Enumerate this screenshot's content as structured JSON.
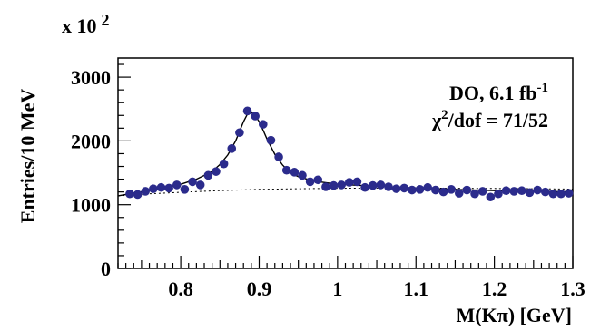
{
  "chart_data": {
    "type": "scatter",
    "exponent_label": "x 10",
    "exponent_power": "2",
    "ylabel": "Entries/10 MeV",
    "xlabel": "M(Kπ) [GeV]",
    "annotation_line1": "DO, 6.1 fb",
    "annotation_line1_sup": "-1",
    "annotation_line2_chi": "χ",
    "annotation_line2_sup": "2",
    "annotation_line2_rest": "/dof = 71/52",
    "xlim": [
      0.72,
      1.3
    ],
    "ylim": [
      0,
      3300
    ],
    "x_ticks": [
      0.8,
      0.9,
      1.0,
      1.1,
      1.2,
      1.3
    ],
    "x_tick_labels": [
      "0.8",
      "0.9",
      "1",
      "1.1",
      "1.2",
      "1.3"
    ],
    "y_ticks": [
      0,
      1000,
      2000,
      3000
    ],
    "y_tick_labels": [
      "0",
      "1000",
      "2000",
      "3000"
    ],
    "marker_color": "#2b2b8c",
    "points": [
      [
        0.735,
        1170
      ],
      [
        0.745,
        1160
      ],
      [
        0.755,
        1210
      ],
      [
        0.765,
        1250
      ],
      [
        0.775,
        1270
      ],
      [
        0.785,
        1260
      ],
      [
        0.795,
        1310
      ],
      [
        0.805,
        1240
      ],
      [
        0.815,
        1360
      ],
      [
        0.825,
        1310
      ],
      [
        0.835,
        1460
      ],
      [
        0.845,
        1520
      ],
      [
        0.855,
        1640
      ],
      [
        0.865,
        1880
      ],
      [
        0.875,
        2130
      ],
      [
        0.885,
        2470
      ],
      [
        0.895,
        2390
      ],
      [
        0.905,
        2260
      ],
      [
        0.915,
        2010
      ],
      [
        0.925,
        1750
      ],
      [
        0.935,
        1540
      ],
      [
        0.945,
        1510
      ],
      [
        0.955,
        1460
      ],
      [
        0.965,
        1360
      ],
      [
        0.975,
        1390
      ],
      [
        0.985,
        1280
      ],
      [
        0.995,
        1300
      ],
      [
        1.005,
        1310
      ],
      [
        1.015,
        1350
      ],
      [
        1.025,
        1360
      ],
      [
        1.035,
        1270
      ],
      [
        1.045,
        1300
      ],
      [
        1.055,
        1310
      ],
      [
        1.065,
        1280
      ],
      [
        1.075,
        1250
      ],
      [
        1.085,
        1260
      ],
      [
        1.095,
        1230
      ],
      [
        1.105,
        1240
      ],
      [
        1.115,
        1270
      ],
      [
        1.125,
        1230
      ],
      [
        1.135,
        1200
      ],
      [
        1.145,
        1240
      ],
      [
        1.155,
        1180
      ],
      [
        1.165,
        1230
      ],
      [
        1.175,
        1170
      ],
      [
        1.185,
        1210
      ],
      [
        1.195,
        1120
      ],
      [
        1.205,
        1170
      ],
      [
        1.215,
        1220
      ],
      [
        1.225,
        1210
      ],
      [
        1.235,
        1220
      ],
      [
        1.245,
        1190
      ],
      [
        1.255,
        1230
      ],
      [
        1.265,
        1200
      ],
      [
        1.275,
        1170
      ],
      [
        1.285,
        1170
      ],
      [
        1.295,
        1180
      ]
    ],
    "series": [
      {
        "kind": "fit",
        "style": "solid",
        "x": [
          0.72,
          0.74,
          0.76,
          0.78,
          0.8,
          0.82,
          0.84,
          0.85,
          0.86,
          0.87,
          0.875,
          0.88,
          0.885,
          0.89,
          0.895,
          0.9,
          0.905,
          0.91,
          0.92,
          0.93,
          0.94,
          0.95,
          0.97,
          1.0,
          1.05,
          1.1,
          1.15,
          1.2,
          1.25,
          1.3
        ],
        "y": [
          1140,
          1180,
          1220,
          1270,
          1320,
          1400,
          1520,
          1630,
          1780,
          2000,
          2150,
          2300,
          2420,
          2450,
          2400,
          2300,
          2170,
          2030,
          1790,
          1620,
          1500,
          1440,
          1370,
          1320,
          1290,
          1260,
          1240,
          1220,
          1210,
          1200
        ]
      },
      {
        "kind": "background",
        "style": "dotted",
        "x": [
          0.72,
          0.76,
          0.8,
          0.85,
          0.9,
          0.95,
          1.0,
          1.05,
          1.1,
          1.15,
          1.2,
          1.25,
          1.3
        ],
        "y": [
          1140,
          1170,
          1195,
          1220,
          1240,
          1250,
          1258,
          1260,
          1260,
          1258,
          1255,
          1250,
          1245
        ]
      }
    ]
  }
}
